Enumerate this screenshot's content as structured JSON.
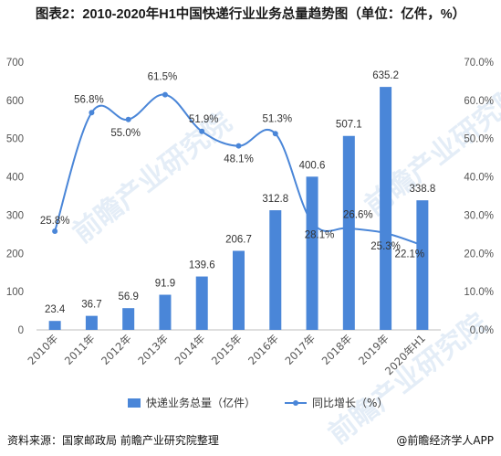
{
  "title": "图表2：2010-2020年H1中国快递行业业务总量趋势图（单位：亿件，%）",
  "source_label": "资料来源：国家邮政局  前瞻产业研究院整理",
  "credit_label": "@前瞻经济学人APP",
  "watermark": "前瞻产业研究院",
  "colors": {
    "bar": "#4a86d8",
    "line": "#4a86d8",
    "axis_text": "#555555",
    "axis_line": "#bfbfbf"
  },
  "chart_data": {
    "type": "bar+line",
    "categories": [
      "2010年",
      "2011年",
      "2012年",
      "2013年",
      "2014年",
      "2015年",
      "2016年",
      "2017年",
      "2018年",
      "2019年",
      "2020年H1"
    ],
    "series": [
      {
        "name": "快递业务总量（亿件）",
        "type": "bar",
        "axis": "left",
        "values": [
          23.4,
          36.7,
          56.9,
          91.9,
          139.6,
          206.7,
          312.8,
          400.6,
          507.1,
          635.2,
          338.8
        ],
        "labels": [
          "23.4",
          "36.7",
          "56.9",
          "91.9",
          "139.6",
          "206.7",
          "312.8",
          "400.6",
          "507.1",
          "635.2",
          "338.8"
        ]
      },
      {
        "name": "同比增长（%）",
        "type": "line",
        "axis": "right",
        "values": [
          25.8,
          56.8,
          55.0,
          61.5,
          51.9,
          48.1,
          51.3,
          28.1,
          26.6,
          25.3,
          22.1
        ],
        "labels": [
          "25.8%",
          "56.8%",
          "55.0%",
          "61.5%",
          "51.9%",
          "48.1%",
          "51.3%",
          "28.1%",
          "26.6%",
          "25.3%",
          "22.1%"
        ]
      }
    ],
    "y_left": {
      "min": 0,
      "max": 700,
      "ticks": [
        "0",
        "100",
        "200",
        "300",
        "400",
        "500",
        "600",
        "700"
      ]
    },
    "y_right": {
      "min": 0,
      "max": 70,
      "ticks": [
        "0.0%",
        "10.0%",
        "20.0%",
        "30.0%",
        "40.0%",
        "50.0%",
        "60.0%",
        "70.0%"
      ]
    },
    "grid": false,
    "legend_position": "bottom"
  }
}
